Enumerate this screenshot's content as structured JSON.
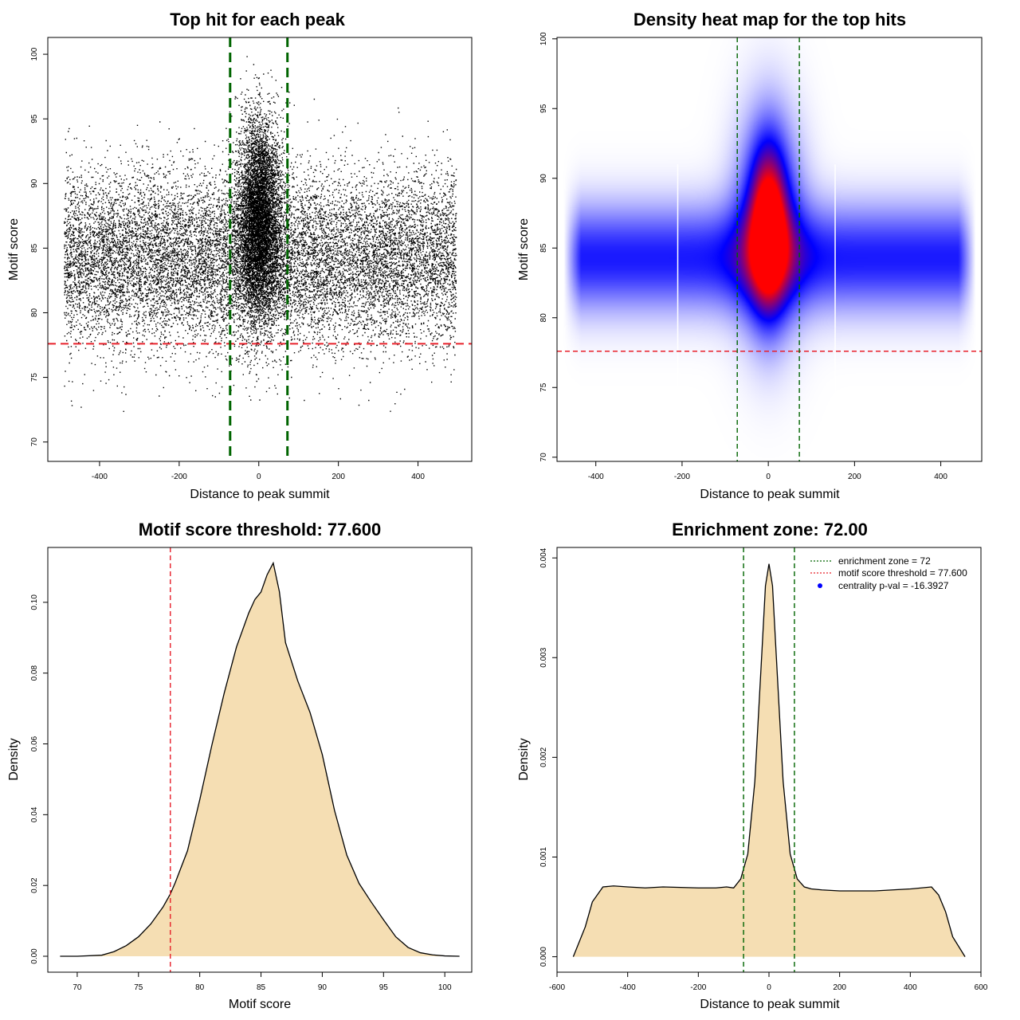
{
  "chart_data": [
    {
      "id": "scatter",
      "type": "scatter",
      "title": "Top hit for each peak",
      "xlabel": "Distance to peak summit",
      "ylabel": "Motif score",
      "xlim": [
        -530,
        535
      ],
      "ylim": [
        68.5,
        101.3
      ],
      "xticks": [
        -400,
        -200,
        0,
        200,
        400
      ],
      "yticks": [
        70,
        75,
        80,
        85,
        90,
        95,
        100
      ],
      "vlines": [
        -72,
        72
      ],
      "hline": 77.6,
      "point_summary": {
        "background": {
          "x_range": [
            -490,
            495
          ],
          "y_mean": 84.2,
          "y_sd": 3.4,
          "count": 14000
        },
        "central": {
          "x_center": 0,
          "x_sd": 28,
          "y_mean": 87.2,
          "y_sd": 3.8,
          "count": 7000
        }
      },
      "colors": {
        "points": "#000000",
        "vlines": "#006400",
        "hline": "#e8202a"
      }
    },
    {
      "id": "heatmap",
      "type": "heatmap",
      "title": "Density heat map for the top hits",
      "xlabel": "Distance to peak summit",
      "ylabel": "Motif score",
      "xlim": [
        -490,
        495
      ],
      "ylim": [
        69.7,
        100.1
      ],
      "xticks": [
        -400,
        -200,
        0,
        200,
        400
      ],
      "yticks": [
        70,
        75,
        80,
        85,
        90,
        95,
        100
      ],
      "vlines": [
        -72,
        72
      ],
      "hline": 77.6,
      "white_gridlines_x": [
        -210,
        155
      ],
      "density_model": {
        "background_band": {
          "y_center": 84.3,
          "y_sd": 2.6
        },
        "central_core": {
          "x_center": 0,
          "x_sd": 28,
          "y_center": 86.5,
          "y_sd": 3.9
        }
      },
      "colors": {
        "low": "#ffffff",
        "mid": "#0000ff",
        "high": "#ff0000",
        "vlines": "#006400",
        "hline": "#e8202a"
      }
    },
    {
      "id": "score-density",
      "type": "area",
      "title": "Motif score threshold: 77.600",
      "xlabel": "Motif score",
      "ylabel": "Density",
      "xlim": [
        67.6,
        102.2
      ],
      "ylim": [
        -0.0045,
        0.1155
      ],
      "xticks": [
        70,
        75,
        80,
        85,
        90,
        95,
        100
      ],
      "yticks": [
        0.0,
        0.02,
        0.04,
        0.06,
        0.08,
        0.1
      ],
      "ytick_labels": [
        "0.00",
        "0.02",
        "0.04",
        "0.06",
        "0.08",
        "0.10"
      ],
      "vline": 77.6,
      "x": [
        68.6,
        70,
        72,
        73,
        74,
        75,
        76,
        77,
        77.6,
        78,
        79,
        80,
        81,
        82,
        83,
        84,
        84.5,
        85,
        85.5,
        86,
        86.5,
        87,
        88,
        89,
        90,
        91,
        92,
        93,
        94,
        95,
        96,
        97,
        98,
        99,
        100,
        101.2
      ],
      "y": [
        0,
        0,
        0.0003,
        0.0013,
        0.003,
        0.0055,
        0.0091,
        0.0139,
        0.0176,
        0.0208,
        0.0298,
        0.0442,
        0.0598,
        0.0744,
        0.0874,
        0.097,
        0.1008,
        0.1029,
        0.1078,
        0.1111,
        0.103,
        0.0886,
        0.0778,
        0.0689,
        0.057,
        0.0412,
        0.0286,
        0.0206,
        0.0153,
        0.0103,
        0.0055,
        0.0025,
        0.001,
        0.0004,
        0.0001,
        0
      ],
      "colors": {
        "fill": "#f5deb3",
        "line": "#000000",
        "vline": "#e8202a"
      }
    },
    {
      "id": "distance-density",
      "type": "area",
      "title": "Enrichment zone: 72.00",
      "xlabel": "Distance to peak summit",
      "ylabel": "Density",
      "xlim": [
        -600,
        600
      ],
      "ylim": [
        -0.000155,
        0.004105
      ],
      "xticks": [
        -600,
        -400,
        -200,
        0,
        200,
        400,
        600
      ],
      "yticks": [
        0,
        0.001,
        0.002,
        0.003,
        0.004
      ],
      "ytick_labels": [
        "0.000",
        "0.001",
        "0.002",
        "0.003",
        "0.004"
      ],
      "vlines": [
        -72,
        72
      ],
      "x": [
        -554,
        -520,
        -500,
        -470,
        -440,
        -400,
        -350,
        -300,
        -200,
        -150,
        -120,
        -100,
        -80,
        -60,
        -40,
        -20,
        -10,
        0,
        10,
        20,
        40,
        60,
        80,
        100,
        120,
        150,
        200,
        300,
        400,
        460,
        480,
        500,
        520,
        555
      ],
      "y": [
        0,
        0.0003,
        0.00055,
        0.0007,
        0.00071,
        0.0007,
        0.00069,
        0.0007,
        0.00069,
        0.00069,
        0.0007,
        0.00069,
        0.00078,
        0.00103,
        0.00176,
        0.00306,
        0.00372,
        0.00394,
        0.00372,
        0.00306,
        0.00176,
        0.00103,
        0.00078,
        0.0007,
        0.00068,
        0.00067,
        0.00066,
        0.00066,
        0.00068,
        0.0007,
        0.00062,
        0.00045,
        0.0002,
        0
      ],
      "legend": {
        "position": "top-right",
        "entries": [
          {
            "label": "enrichment zone = 72",
            "style": "dotted",
            "color": "#006400"
          },
          {
            "label": "motif score threshold = 77.600",
            "style": "dotted",
            "color": "#e8202a"
          },
          {
            "label": "centrality p-val = -16.3927",
            "style": "point",
            "color": "#0000ff"
          }
        ]
      },
      "colors": {
        "fill": "#f5deb3",
        "line": "#000000",
        "vlines": "#006400"
      }
    }
  ]
}
